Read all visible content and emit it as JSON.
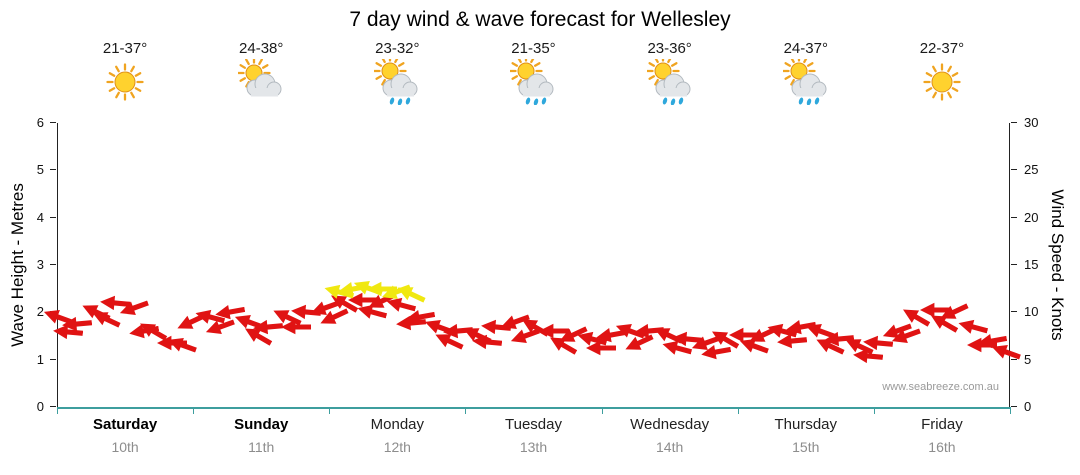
{
  "title": "7 day wind & wave forecast for Wellesley",
  "watermark": "www.seabreeze.com.au",
  "left_axis": {
    "label": "Wave Height - Metres",
    "ticks": [
      0,
      1,
      2,
      3,
      4,
      5,
      6
    ],
    "max": 6
  },
  "right_axis": {
    "label": "Wind Speed - Knots",
    "ticks": [
      0,
      5,
      10,
      15,
      20,
      25,
      30
    ],
    "max": 30
  },
  "days": [
    {
      "name": "Saturday",
      "date": "10th",
      "temp": "21-37°",
      "icon": "sun-icon",
      "emphasis": true
    },
    {
      "name": "Sunday",
      "date": "11th",
      "temp": "24-38°",
      "icon": "sun-cloud-icon",
      "emphasis": true
    },
    {
      "name": "Monday",
      "date": "12th",
      "temp": "23-32°",
      "icon": "sun-cloud-rain-icon",
      "emphasis": false
    },
    {
      "name": "Tuesday",
      "date": "13th",
      "temp": "21-35°",
      "icon": "sun-cloud-rain-icon",
      "emphasis": false
    },
    {
      "name": "Wednesday",
      "date": "14th",
      "temp": "23-36°",
      "icon": "sun-cloud-rain-icon",
      "emphasis": false
    },
    {
      "name": "Thursday",
      "date": "15th",
      "temp": "24-37°",
      "icon": "sun-cloud-rain-icon",
      "emphasis": false
    },
    {
      "name": "Friday",
      "date": "16th",
      "temp": "22-37°",
      "icon": "sun-icon",
      "emphasis": false
    }
  ],
  "colors": {
    "arrow_red": "#e01313",
    "arrow_yellow": "#f0e810",
    "axis_bottom": "#3d9e9e",
    "date_gray": "#8d8d8d"
  },
  "chart_data": {
    "type": "wind-arrows",
    "x_unit": "percent-of-week",
    "y_unit": "knots",
    "ylim_knots": [
      0,
      30
    ],
    "ylim_metres": [
      0,
      6
    ],
    "legend": "arrow height = wind speed in knots (right axis) / wave metres (left axis); red = lighter wind, yellow = stronger wind",
    "points": [
      {
        "x": 0,
        "k": 9.5,
        "d": 200,
        "c": "red"
      },
      {
        "x": 2,
        "k": 8.8,
        "d": 175,
        "c": "red"
      },
      {
        "x": 4,
        "k": 10,
        "d": 205,
        "c": "red"
      },
      {
        "x": 6,
        "k": 11,
        "d": 185,
        "c": "red"
      },
      {
        "x": 8,
        "k": 10.5,
        "d": 160,
        "c": "red"
      },
      {
        "x": 10,
        "k": 8,
        "d": 210,
        "c": "red"
      },
      {
        "x": 12,
        "k": 6.8,
        "d": 180,
        "c": "red"
      },
      {
        "x": 14,
        "k": 9,
        "d": 155,
        "c": "red"
      },
      {
        "x": 16,
        "k": 9.5,
        "d": 195,
        "c": "red"
      },
      {
        "x": 18,
        "k": 10,
        "d": 170,
        "c": "red"
      },
      {
        "x": 20,
        "k": 9,
        "d": 200,
        "c": "red"
      },
      {
        "x": 22,
        "k": 8.5,
        "d": 175,
        "c": "red"
      },
      {
        "x": 24,
        "k": 9.5,
        "d": 205,
        "c": "red"
      },
      {
        "x": 26,
        "k": 10,
        "d": 185,
        "c": "red"
      },
      {
        "x": 28,
        "k": 10.5,
        "d": 160,
        "c": "red"
      },
      {
        "x": 30,
        "k": 11,
        "d": 210,
        "c": "red"
      },
      {
        "x": 32,
        "k": 11.3,
        "d": 180,
        "c": "red"
      },
      {
        "x": 34,
        "k": 11.2,
        "d": 155,
        "c": "red"
      },
      {
        "x": 36,
        "k": 10.8,
        "d": 195,
        "c": "red"
      },
      {
        "x": 38,
        "k": 9.5,
        "d": 170,
        "c": "red"
      },
      {
        "x": 40,
        "k": 8.5,
        "d": 200,
        "c": "red"
      },
      {
        "x": 42,
        "k": 8,
        "d": 175,
        "c": "red"
      },
      {
        "x": 44,
        "k": 7.6,
        "d": 205,
        "c": "red"
      },
      {
        "x": 46,
        "k": 8.5,
        "d": 185,
        "c": "red"
      },
      {
        "x": 48,
        "k": 9,
        "d": 160,
        "c": "red"
      },
      {
        "x": 50,
        "k": 8.5,
        "d": 210,
        "c": "red"
      },
      {
        "x": 52,
        "k": 8,
        "d": 180,
        "c": "red"
      },
      {
        "x": 54,
        "k": 7.6,
        "d": 155,
        "c": "red"
      },
      {
        "x": 56,
        "k": 7.2,
        "d": 195,
        "c": "red"
      },
      {
        "x": 58,
        "k": 7.6,
        "d": 170,
        "c": "red"
      },
      {
        "x": 60,
        "k": 8,
        "d": 200,
        "c": "red"
      },
      {
        "x": 62,
        "k": 8,
        "d": 175,
        "c": "red"
      },
      {
        "x": 64,
        "k": 7.6,
        "d": 205,
        "c": "red"
      },
      {
        "x": 66,
        "k": 7.2,
        "d": 185,
        "c": "red"
      },
      {
        "x": 68,
        "k": 6.8,
        "d": 160,
        "c": "red"
      },
      {
        "x": 70,
        "k": 7.2,
        "d": 210,
        "c": "red"
      },
      {
        "x": 72,
        "k": 7.6,
        "d": 180,
        "c": "red"
      },
      {
        "x": 74,
        "k": 7.6,
        "d": 155,
        "c": "red"
      },
      {
        "x": 76,
        "k": 8,
        "d": 195,
        "c": "red"
      },
      {
        "x": 78,
        "k": 8.4,
        "d": 170,
        "c": "red"
      },
      {
        "x": 80,
        "k": 8,
        "d": 200,
        "c": "red"
      },
      {
        "x": 82,
        "k": 7.2,
        "d": 175,
        "c": "red"
      },
      {
        "x": 84,
        "k": 6.4,
        "d": 205,
        "c": "red"
      },
      {
        "x": 86,
        "k": 6.8,
        "d": 185,
        "c": "red"
      },
      {
        "x": 88,
        "k": 8,
        "d": 160,
        "c": "red"
      },
      {
        "x": 90,
        "k": 9.5,
        "d": 210,
        "c": "red"
      },
      {
        "x": 92,
        "k": 10.3,
        "d": 180,
        "c": "red"
      },
      {
        "x": 94,
        "k": 10,
        "d": 155,
        "c": "red"
      },
      {
        "x": 96,
        "k": 8.5,
        "d": 195,
        "c": "red"
      },
      {
        "x": 98,
        "k": 7,
        "d": 170,
        "c": "red"
      },
      {
        "x": 99.5,
        "k": 5.8,
        "d": 200,
        "c": "red"
      },
      {
        "x": 1,
        "k": 7.9,
        "d": 185,
        "c": "red"
      },
      {
        "x": 5,
        "k": 9.3,
        "d": 205,
        "c": "red"
      },
      {
        "x": 9,
        "k": 8,
        "d": 170,
        "c": "red"
      },
      {
        "x": 13,
        "k": 6.6,
        "d": 200,
        "c": "red"
      },
      {
        "x": 17,
        "k": 8.4,
        "d": 160,
        "c": "red"
      },
      {
        "x": 21,
        "k": 7.5,
        "d": 210,
        "c": "red"
      },
      {
        "x": 25,
        "k": 8.5,
        "d": 180,
        "c": "red"
      },
      {
        "x": 29,
        "k": 9.5,
        "d": 155,
        "c": "red"
      },
      {
        "x": 33,
        "k": 10,
        "d": 195,
        "c": "red"
      },
      {
        "x": 37,
        "k": 8.9,
        "d": 175,
        "c": "red"
      },
      {
        "x": 41,
        "k": 7,
        "d": 205,
        "c": "red"
      },
      {
        "x": 45,
        "k": 6.9,
        "d": 185,
        "c": "red"
      },
      {
        "x": 49,
        "k": 7.5,
        "d": 160,
        "c": "red"
      },
      {
        "x": 53,
        "k": 6.6,
        "d": 210,
        "c": "red"
      },
      {
        "x": 57,
        "k": 6.2,
        "d": 180,
        "c": "red"
      },
      {
        "x": 61,
        "k": 6.8,
        "d": 155,
        "c": "red"
      },
      {
        "x": 65,
        "k": 6.2,
        "d": 195,
        "c": "red"
      },
      {
        "x": 69,
        "k": 5.8,
        "d": 170,
        "c": "red"
      },
      {
        "x": 73,
        "k": 6.4,
        "d": 200,
        "c": "red"
      },
      {
        "x": 77,
        "k": 7,
        "d": 175,
        "c": "red"
      },
      {
        "x": 81,
        "k": 6.4,
        "d": 205,
        "c": "red"
      },
      {
        "x": 85,
        "k": 5.4,
        "d": 185,
        "c": "red"
      },
      {
        "x": 89,
        "k": 7.5,
        "d": 160,
        "c": "red"
      },
      {
        "x": 93,
        "k": 8.9,
        "d": 210,
        "c": "red"
      },
      {
        "x": 97,
        "k": 6.5,
        "d": 180,
        "c": "red"
      },
      {
        "x": 29.5,
        "k": 12.2,
        "d": 195,
        "c": "yellow"
      },
      {
        "x": 31,
        "k": 12.5,
        "d": 170,
        "c": "yellow"
      },
      {
        "x": 32.5,
        "k": 12.6,
        "d": 200,
        "c": "yellow"
      },
      {
        "x": 34,
        "k": 12.5,
        "d": 180,
        "c": "yellow"
      },
      {
        "x": 35.5,
        "k": 12.2,
        "d": 160,
        "c": "yellow"
      },
      {
        "x": 37,
        "k": 11.9,
        "d": 205,
        "c": "yellow"
      }
    ]
  }
}
